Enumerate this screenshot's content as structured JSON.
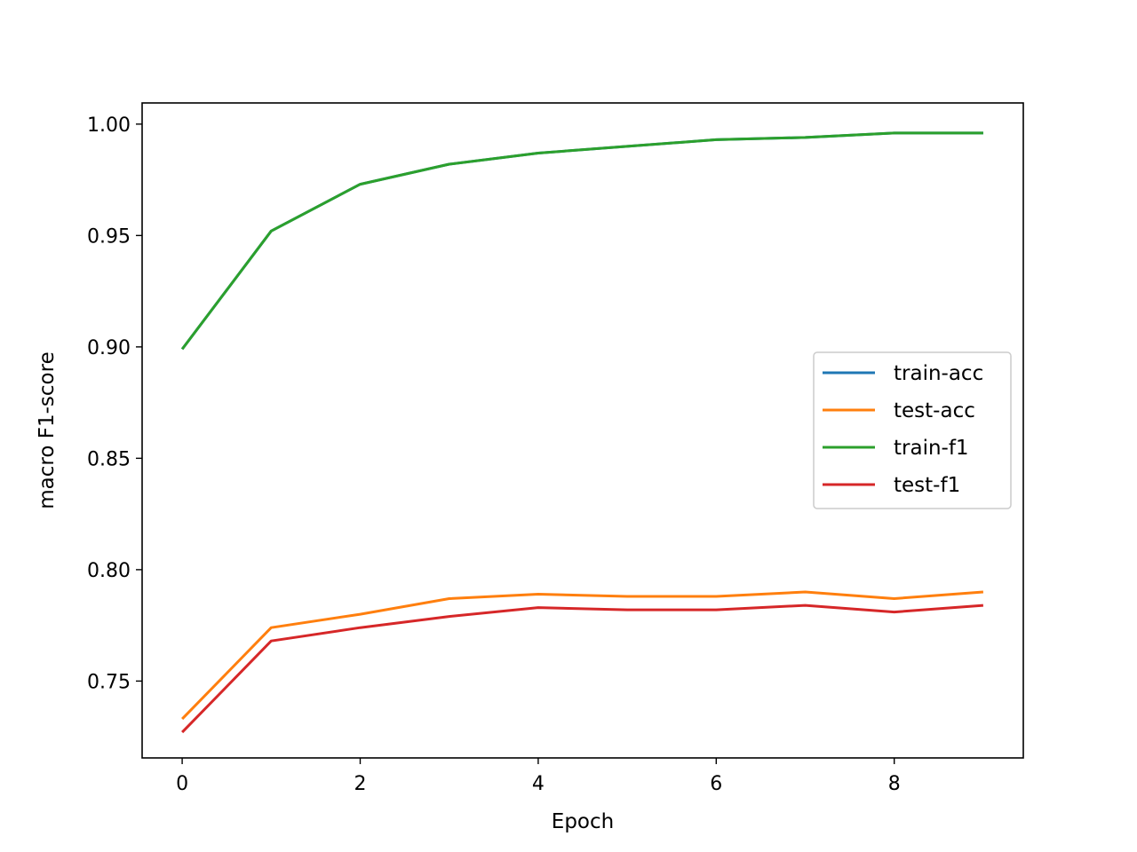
{
  "chart_data": {
    "type": "line",
    "xlabel": "Epoch",
    "ylabel": "macro F1-score",
    "xlim": [
      -0.45,
      9.45
    ],
    "ylim": [
      0.7155,
      1.0095
    ],
    "x_ticks": [
      0,
      2,
      4,
      6,
      8
    ],
    "y_ticks": [
      0.75,
      0.8,
      0.85,
      0.9,
      0.95,
      1.0
    ],
    "x_tick_labels": [
      "0",
      "2",
      "4",
      "6",
      "8"
    ],
    "y_tick_labels": [
      "0.75",
      "0.80",
      "0.85",
      "0.90",
      "0.95",
      "1.00"
    ],
    "grid": false,
    "legend_position": "center-right",
    "x": [
      0,
      1,
      2,
      3,
      4,
      5,
      6,
      7,
      8,
      9
    ],
    "series": [
      {
        "name": "train-acc",
        "color": "#1f77b4",
        "values": [
          0.899,
          0.952,
          0.973,
          0.982,
          0.987,
          0.99,
          0.993,
          0.994,
          0.996,
          0.996
        ]
      },
      {
        "name": "test-acc",
        "color": "#ff7f0e",
        "values": [
          0.733,
          0.774,
          0.78,
          0.787,
          0.789,
          0.788,
          0.788,
          0.79,
          0.787,
          0.79
        ]
      },
      {
        "name": "train-f1",
        "color": "#2ca02c",
        "values": [
          0.899,
          0.952,
          0.973,
          0.982,
          0.987,
          0.99,
          0.993,
          0.994,
          0.996,
          0.996
        ]
      },
      {
        "name": "test-f1",
        "color": "#d62728",
        "values": [
          0.727,
          0.768,
          0.774,
          0.779,
          0.783,
          0.782,
          0.782,
          0.784,
          0.781,
          0.784
        ]
      }
    ]
  }
}
